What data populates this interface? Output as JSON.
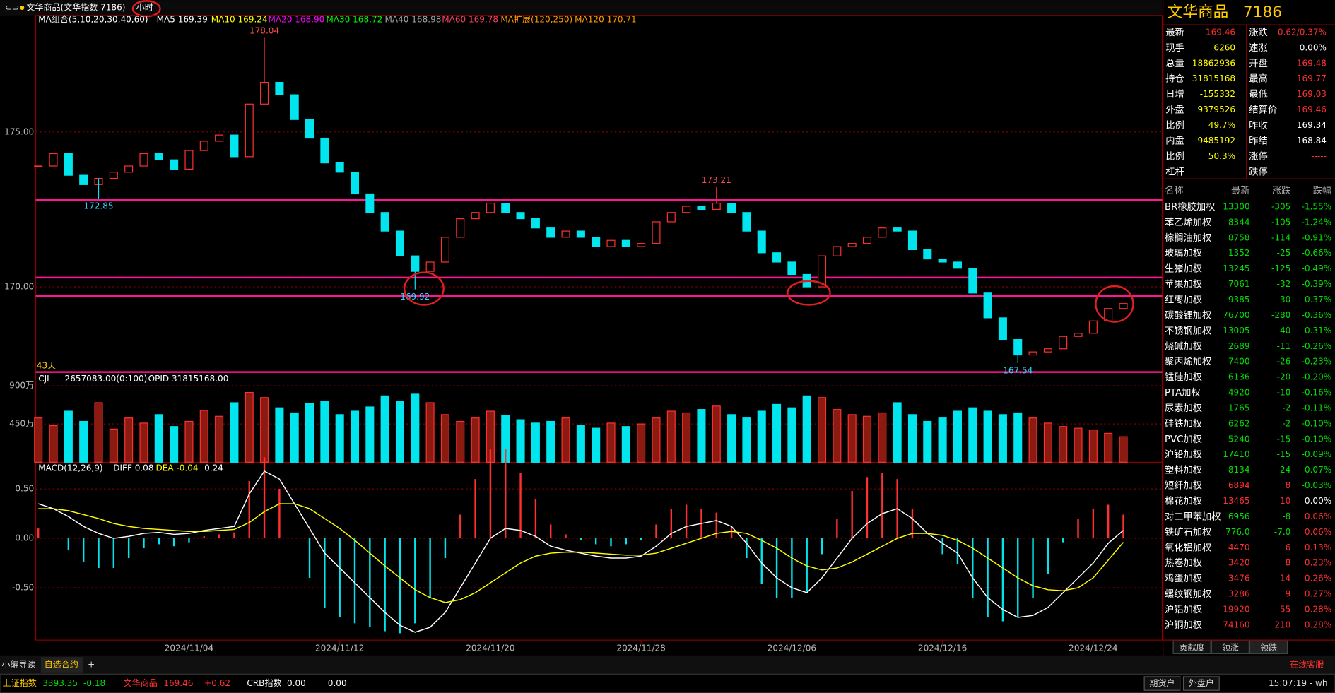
{
  "header": {
    "title": "文华商品(文华指数 7186)",
    "period": "小时"
  },
  "legend": [
    {
      "text": "MA组合(5,10,20,30,40,60)",
      "color": "#ffffff"
    },
    {
      "text": "MA5 169.39",
      "color": "#ffffff"
    },
    {
      "text": "MA10 169.24",
      "color": "#ffff00"
    },
    {
      "text": "MA20 168.90",
      "color": "#ff00ff"
    },
    {
      "text": "MA30 168.72",
      "color": "#00ff00"
    },
    {
      "text": "MA40 168.98",
      "color": "#a0a0a0"
    },
    {
      "text": "MA60 169.78",
      "color": "#ff4060"
    },
    {
      "text": "MA扩展(120,250)",
      "color": "#ff9900"
    },
    {
      "text": "MA120 170.71",
      "color": "#ff9900"
    }
  ],
  "price": {
    "ylim": [
      167.25,
      178.76
    ],
    "yticks": [
      {
        "value": 170,
        "label": "170.00"
      },
      {
        "value": 175,
        "label": "175.00"
      }
    ],
    "closes": [
      173.9,
      174.3,
      173.6,
      173.3,
      173.5,
      173.7,
      173.9,
      174.3,
      174.1,
      173.8,
      174.4,
      174.7,
      174.9,
      174.2,
      175.9,
      176.6,
      176.2,
      175.4,
      174.8,
      174.0,
      173.7,
      173.0,
      172.4,
      171.8,
      171.0,
      170.5,
      170.8,
      171.6,
      172.2,
      172.4,
      172.7,
      172.4,
      172.2,
      171.9,
      171.6,
      171.8,
      171.6,
      171.3,
      171.5,
      171.3,
      171.4,
      172.1,
      172.4,
      172.6,
      172.5,
      172.7,
      172.4,
      171.8,
      171.1,
      170.8,
      170.4,
      170.0,
      171.0,
      171.3,
      171.4,
      171.6,
      171.9,
      171.8,
      171.2,
      170.9,
      170.8,
      170.6,
      169.8,
      169.0,
      168.3,
      167.8,
      167.9,
      168.0,
      168.4,
      168.5,
      168.9,
      169.3,
      169.46
    ],
    "annotations": [
      {
        "label": "178.04",
        "value": 178.04,
        "index": 15,
        "kind": "high"
      },
      {
        "label": "172.85",
        "value": 172.85,
        "index": 4,
        "kind": "low"
      },
      {
        "label": "169.92",
        "value": 169.92,
        "index": 25,
        "kind": "low"
      },
      {
        "label": "173.21",
        "value": 173.21,
        "index": 45,
        "kind": "high"
      },
      {
        "label": "167.54",
        "value": 167.54,
        "index": 65,
        "kind": "low"
      }
    ],
    "hlines": [
      172.8,
      170.3,
      169.7
    ],
    "days_label": "43天"
  },
  "volume": {
    "label": "CJL",
    "value_text": "2657083.00(0:100)",
    "opid": "OPID 31815168.00",
    "ylim": [
      0,
      1060
    ],
    "yticks": [
      {
        "value": 450,
        "label": "450万"
      },
      {
        "value": 900,
        "label": "900万"
      }
    ],
    "values": [
      520,
      430,
      600,
      480,
      700,
      390,
      520,
      460,
      560,
      420,
      480,
      610,
      540,
      700,
      820,
      760,
      640,
      580,
      690,
      720,
      560,
      600,
      650,
      780,
      720,
      800,
      700,
      560,
      480,
      520,
      600,
      550,
      500,
      460,
      480,
      520,
      430,
      400,
      460,
      420,
      450,
      520,
      600,
      580,
      620,
      660,
      560,
      520,
      600,
      680,
      640,
      780,
      760,
      620,
      560,
      540,
      580,
      700,
      560,
      480,
      520,
      600,
      640,
      600,
      560,
      580,
      520,
      460,
      420,
      400,
      380,
      340,
      300
    ]
  },
  "macd": {
    "label": "MACD(12,26,9)",
    "diff_text": "DIFF 0.08",
    "dea_text": "DEA -0.04",
    "macd_text": "0.24",
    "ylim": [
      -1.03,
      0.77
    ],
    "yticks": [
      {
        "value": 0.5,
        "label": "0.50"
      },
      {
        "value": 0,
        "label": "0.00"
      },
      {
        "value": -0.5,
        "label": "-0.50"
      }
    ],
    "hist": [
      0.1,
      0,
      -0.12,
      -0.24,
      -0.3,
      -0.3,
      -0.2,
      -0.1,
      -0.06,
      -0.08,
      -0.04,
      0.02,
      0.04,
      0.06,
      0.58,
      0.82,
      0.5,
      0,
      -0.4,
      -0.7,
      -0.8,
      -0.86,
      -0.9,
      -0.94,
      -0.96,
      -0.86,
      -0.6,
      -0.2,
      0.24,
      0.6,
      0.9,
      0.9,
      0.66,
      0.4,
      0.14,
      0.04,
      -0.02,
      -0.06,
      -0.08,
      -0.06,
      -0.02,
      0.14,
      0.3,
      0.34,
      0.3,
      0.26,
      0.1,
      -0.2,
      -0.46,
      -0.6,
      -0.6,
      -0.54,
      -0.16,
      0.2,
      0.48,
      0.62,
      0.66,
      0.6,
      0.3,
      0,
      -0.16,
      -0.26,
      -0.6,
      -0.8,
      -0.84,
      -0.8,
      -0.6,
      -0.36,
      -0.04,
      0.2,
      0.3,
      0.34,
      0.24
    ],
    "diff": [
      0.35,
      0.3,
      0.22,
      0.12,
      0.05,
      0.0,
      0.02,
      0.05,
      0.06,
      0.04,
      0.05,
      0.08,
      0.1,
      0.12,
      0.45,
      0.68,
      0.6,
      0.35,
      0.1,
      -0.15,
      -0.3,
      -0.45,
      -0.6,
      -0.75,
      -0.88,
      -0.95,
      -0.9,
      -0.75,
      -0.5,
      -0.25,
      0.0,
      0.1,
      0.08,
      0.02,
      -0.08,
      -0.12,
      -0.15,
      -0.18,
      -0.2,
      -0.2,
      -0.18,
      -0.08,
      0.05,
      0.12,
      0.15,
      0.18,
      0.12,
      -0.05,
      -0.25,
      -0.4,
      -0.5,
      -0.55,
      -0.4,
      -0.2,
      0.0,
      0.15,
      0.25,
      0.3,
      0.2,
      0.05,
      -0.05,
      -0.15,
      -0.4,
      -0.6,
      -0.72,
      -0.8,
      -0.78,
      -0.7,
      -0.55,
      -0.4,
      -0.25,
      -0.05,
      0.08
    ],
    "dea": [
      0.3,
      0.3,
      0.28,
      0.24,
      0.2,
      0.15,
      0.12,
      0.1,
      0.09,
      0.08,
      0.07,
      0.07,
      0.08,
      0.09,
      0.16,
      0.27,
      0.35,
      0.35,
      0.3,
      0.2,
      0.1,
      -0.02,
      -0.15,
      -0.28,
      -0.4,
      -0.52,
      -0.6,
      -0.65,
      -0.62,
      -0.55,
      -0.45,
      -0.35,
      -0.25,
      -0.18,
      -0.15,
      -0.14,
      -0.14,
      -0.15,
      -0.16,
      -0.17,
      -0.17,
      -0.15,
      -0.1,
      -0.05,
      0.0,
      0.05,
      0.07,
      0.05,
      -0.02,
      -0.1,
      -0.2,
      -0.28,
      -0.32,
      -0.3,
      -0.24,
      -0.16,
      -0.08,
      0.0,
      0.05,
      0.05,
      0.03,
      -0.02,
      -0.1,
      -0.2,
      -0.3,
      -0.4,
      -0.48,
      -0.52,
      -0.53,
      -0.5,
      -0.4,
      -0.22,
      -0.04
    ]
  },
  "categories": [
    null,
    null,
    null,
    null,
    null,
    null,
    null,
    null,
    null,
    null,
    "2024/11/04",
    null,
    null,
    null,
    null,
    null,
    null,
    null,
    null,
    null,
    "2024/11/12",
    null,
    null,
    null,
    null,
    null,
    null,
    null,
    null,
    null,
    "2024/11/20",
    null,
    null,
    null,
    null,
    null,
    null,
    null,
    null,
    null,
    "2024/11/28",
    null,
    null,
    null,
    null,
    null,
    null,
    null,
    null,
    null,
    "2024/12/06",
    null,
    null,
    null,
    null,
    null,
    null,
    null,
    null,
    null,
    "2024/12/16",
    null,
    null,
    null,
    null,
    null,
    null,
    null,
    null,
    null,
    "2024/12/24",
    null,
    null
  ],
  "quote": {
    "name": "文华商品",
    "code": "7186",
    "rows": [
      [
        "最新",
        "169.46",
        "涨跌",
        "0.62/0.37%"
      ],
      [
        "现手",
        "6260",
        "速涨",
        "0.00%"
      ],
      [
        "总量",
        "18862936",
        "开盘",
        "169.48"
      ],
      [
        "持仓",
        "31815168",
        "最高",
        "169.77"
      ],
      [
        "日增",
        "-155332",
        "最低",
        "169.03"
      ],
      [
        "外盘",
        "9379526",
        "结算价",
        "169.46"
      ],
      [
        "比例",
        "49.7%",
        "昨收",
        "169.34"
      ],
      [
        "内盘",
        "9485192",
        "昨结",
        "168.84"
      ],
      [
        "比例",
        "50.3%",
        "涨停",
        "-----"
      ],
      [
        "杠杆",
        "-----",
        "跌停",
        "-----"
      ]
    ]
  },
  "list": {
    "header": [
      "名称",
      "最新",
      "涨跌",
      "跌幅"
    ],
    "rows": [
      [
        "BR橡胶加权",
        "13300",
        "-305",
        "-1.55%"
      ],
      [
        "苯乙烯加权",
        "8344",
        "-105",
        "-1.24%"
      ],
      [
        "棕榈油加权",
        "8758",
        "-114",
        "-0.91%"
      ],
      [
        "玻璃加权",
        "1352",
        "-25",
        "-0.66%"
      ],
      [
        "生猪加权",
        "13245",
        "-125",
        "-0.49%"
      ],
      [
        "苹果加权",
        "7061",
        "-32",
        "-0.39%"
      ],
      [
        "红枣加权",
        "9385",
        "-30",
        "-0.37%"
      ],
      [
        "碳酸锂加权",
        "76700",
        "-280",
        "-0.36%"
      ],
      [
        "不锈钢加权",
        "13005",
        "-40",
        "-0.31%"
      ],
      [
        "烧碱加权",
        "2689",
        "-11",
        "-0.26%"
      ],
      [
        "聚丙烯加权",
        "7400",
        "-26",
        "-0.23%"
      ],
      [
        "锰硅加权",
        "6136",
        "-20",
        "-0.20%"
      ],
      [
        "PTA加权",
        "4920",
        "-10",
        "-0.16%"
      ],
      [
        "尿素加权",
        "1765",
        "-2",
        "-0.11%"
      ],
      [
        "硅铁加权",
        "6262",
        "-2",
        "-0.10%"
      ],
      [
        "PVC加权",
        "5240",
        "-15",
        "-0.10%"
      ],
      [
        "沪铅加权",
        "17410",
        "-15",
        "-0.09%"
      ],
      [
        "塑料加权",
        "8134",
        "-24",
        "-0.07%"
      ],
      [
        "短纤加权",
        "6894",
        "8",
        "-0.03%"
      ],
      [
        "棉花加权",
        "13465",
        "10",
        "0.00%"
      ],
      [
        "对二甲苯加权",
        "6956",
        "-8",
        "0.06%"
      ],
      [
        "铁矿石加权",
        "776.0",
        "-7.0",
        "0.06%"
      ],
      [
        "氧化铝加权",
        "4470",
        "6",
        "0.13%"
      ],
      [
        "热卷加权",
        "3420",
        "8",
        "0.23%"
      ],
      [
        "鸡蛋加权",
        "3476",
        "14",
        "0.26%"
      ],
      [
        "螺纹钢加权",
        "3286",
        "9",
        "0.27%"
      ],
      [
        "沪铝加权",
        "19920",
        "55",
        "0.28%"
      ],
      [
        "沪铜加权",
        "74160",
        "210",
        "0.28%"
      ]
    ],
    "tabs": [
      "贡献度",
      "领涨",
      "领跌"
    ]
  },
  "bottom_tabs": [
    "小编导读",
    "自选合约",
    "+"
  ],
  "footer": {
    "indices": [
      {
        "name": "上证指数",
        "price": "3393.35",
        "change": "-0.18"
      },
      {
        "name": "文华商品",
        "price": "169.46",
        "change": "+0.62"
      },
      {
        "name": "CRB指数",
        "price": "0.00",
        "change": "0.00"
      }
    ],
    "buttons": [
      "期货户",
      "外盘户"
    ],
    "service": "在线客服",
    "time": "15:07:19 - wh"
  }
}
